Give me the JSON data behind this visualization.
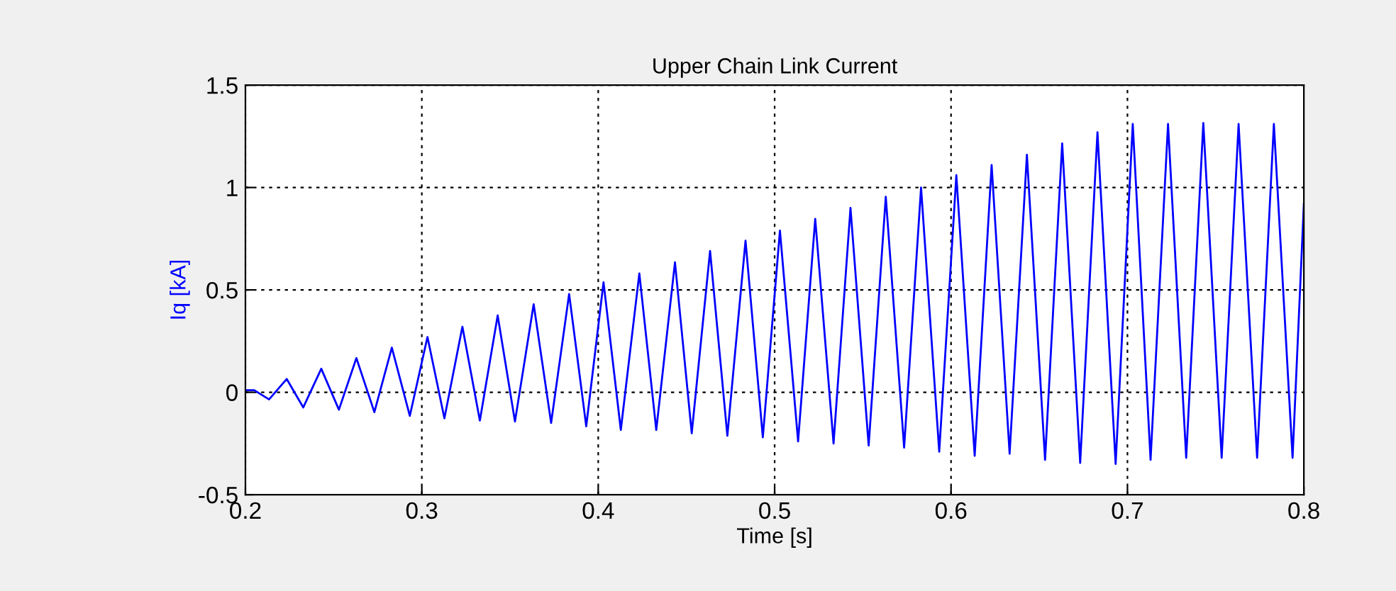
{
  "chart_data": {
    "type": "line",
    "title": "Upper Chain Link Current",
    "xlabel": "Time [s]",
    "ylabel": "Iq [kA]",
    "xlim": [
      0.2,
      0.8
    ],
    "ylim": [
      -0.5,
      1.5
    ],
    "xticks": [
      0.2,
      0.3,
      0.4,
      0.5,
      0.6,
      0.7,
      0.8
    ],
    "yticks": [
      -0.5,
      0,
      0.5,
      1,
      1.5
    ],
    "grid": true,
    "line_style": "solid",
    "marker": "none",
    "series": [
      {
        "color": "#0000ff",
        "x": [
          0.2,
          0.205,
          0.2134,
          0.2234,
          0.2328,
          0.243,
          0.253,
          0.2629,
          0.2731,
          0.283,
          0.2932,
          0.3032,
          0.3128,
          0.323,
          0.3329,
          0.343,
          0.3528,
          0.3634,
          0.3733,
          0.3835,
          0.3932,
          0.403,
          0.4128,
          0.4233,
          0.4329,
          0.4435,
          0.453,
          0.4634,
          0.4732,
          0.4835,
          0.4933,
          0.503,
          0.5133,
          0.523,
          0.5334,
          0.543,
          0.5533,
          0.563,
          0.5734,
          0.583,
          0.5933,
          0.603,
          0.6134,
          0.623,
          0.6332,
          0.643,
          0.6533,
          0.663,
          0.6732,
          0.683,
          0.6933,
          0.703,
          0.7131,
          0.723,
          0.7333,
          0.743,
          0.7534,
          0.763,
          0.7735,
          0.783,
          0.7936,
          0.8
        ],
        "values": [
          0.01,
          0.01,
          -0.035,
          0.065,
          -0.074,
          0.115,
          -0.085,
          0.167,
          -0.097,
          0.218,
          -0.115,
          0.27,
          -0.127,
          0.32,
          -0.138,
          0.375,
          -0.143,
          0.43,
          -0.15,
          0.48,
          -0.166,
          0.537,
          -0.184,
          0.58,
          -0.184,
          0.635,
          -0.2,
          0.69,
          -0.212,
          0.74,
          -0.22,
          0.79,
          -0.24,
          0.847,
          -0.25,
          0.9,
          -0.26,
          0.955,
          -0.27,
          1.0,
          -0.29,
          1.06,
          -0.31,
          1.11,
          -0.3,
          1.16,
          -0.33,
          1.215,
          -0.345,
          1.27,
          -0.35,
          1.31,
          -0.33,
          1.31,
          -0.32,
          1.315,
          -0.32,
          1.31,
          -0.32,
          1.31,
          -0.32,
          0.92
        ]
      }
    ]
  }
}
